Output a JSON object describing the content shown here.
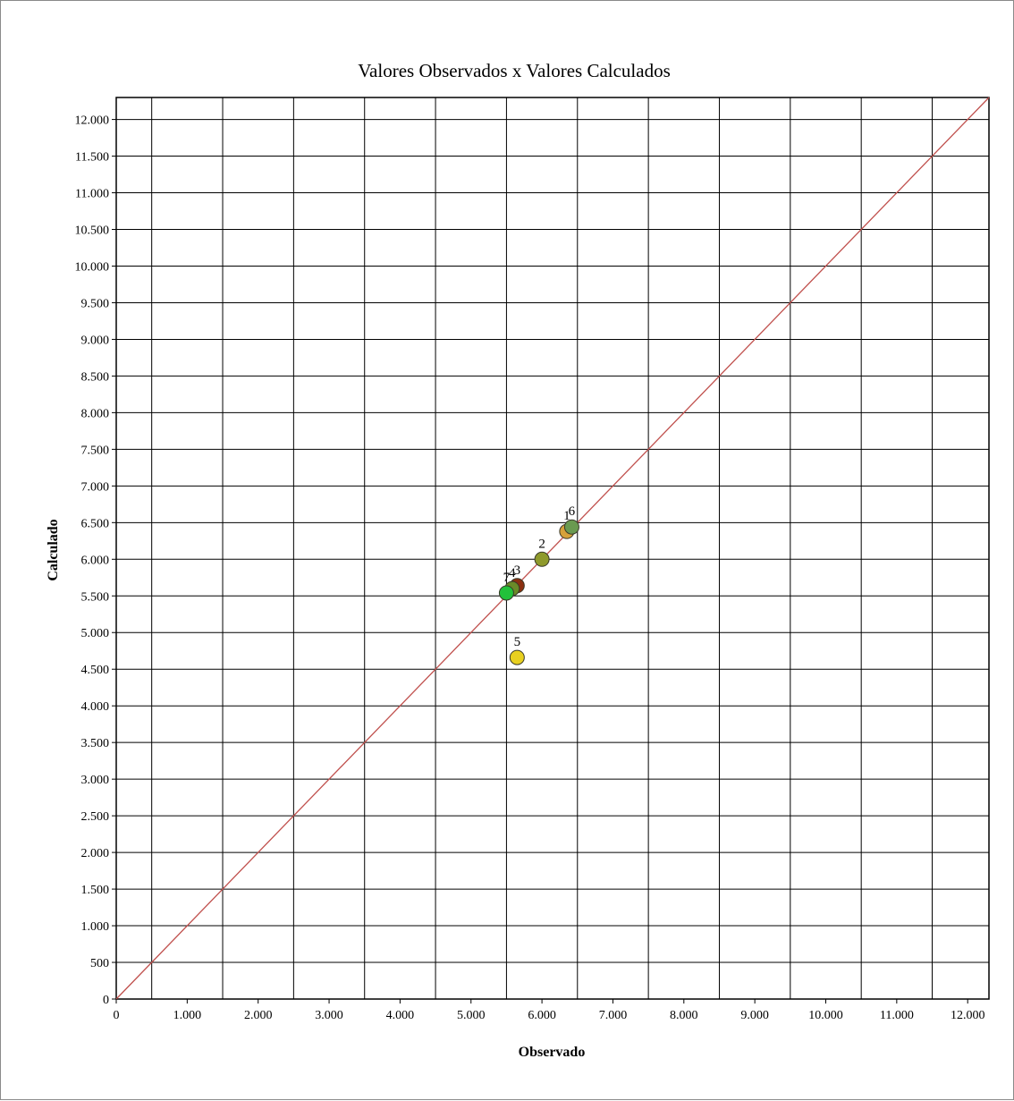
{
  "chart_data": {
    "type": "scatter",
    "title": "Valores Observados x Valores Calculados",
    "xlabel": "Observado",
    "ylabel": "Calculado",
    "xlim": [
      0,
      12300
    ],
    "ylim": [
      0,
      12300
    ],
    "x_ticks": [
      0,
      1000,
      2000,
      3000,
      4000,
      5000,
      6000,
      7000,
      8000,
      9000,
      10000,
      11000,
      12000
    ],
    "x_tick_labels": [
      "0",
      "1.000",
      "2.000",
      "3.000",
      "4.000",
      "5.000",
      "6.000",
      "7.000",
      "8.000",
      "9.000",
      "10.000",
      "11.000",
      "12.000"
    ],
    "y_ticks": [
      0,
      500,
      1000,
      1500,
      2000,
      2500,
      3000,
      3500,
      4000,
      4500,
      5000,
      5500,
      6000,
      6500,
      7000,
      7500,
      8000,
      8500,
      9000,
      9500,
      10000,
      10500,
      11000,
      11500,
      12000
    ],
    "y_tick_labels": [
      "0",
      "500",
      "1.000",
      "1.500",
      "2.000",
      "2.500",
      "3.000",
      "3.500",
      "4.000",
      "4.500",
      "5.000",
      "5.500",
      "6.000",
      "6.500",
      "7.000",
      "7.500",
      "8.000",
      "8.500",
      "9.000",
      "9.500",
      "10.000",
      "10.500",
      "11.000",
      "11.500",
      "12.000"
    ],
    "grid": true,
    "reference_line": {
      "from": [
        0,
        0
      ],
      "to": [
        12300,
        12300
      ],
      "color": "#c0504d"
    },
    "points": [
      {
        "label": "1",
        "x": 6350,
        "y": 6380,
        "color": "#d6a13a"
      },
      {
        "label": "2",
        "x": 6000,
        "y": 6000,
        "color": "#8f9a2c"
      },
      {
        "label": "3",
        "x": 5650,
        "y": 5640,
        "color": "#8b2f10"
      },
      {
        "label": "4",
        "x": 5580,
        "y": 5600,
        "color": "#6a8a28"
      },
      {
        "label": "5",
        "x": 5650,
        "y": 4660,
        "color": "#e8d020"
      },
      {
        "label": "6",
        "x": 6420,
        "y": 6440,
        "color": "#6a9a50"
      },
      {
        "label": "7",
        "x": 5500,
        "y": 5540,
        "color": "#22c13a"
      }
    ]
  }
}
